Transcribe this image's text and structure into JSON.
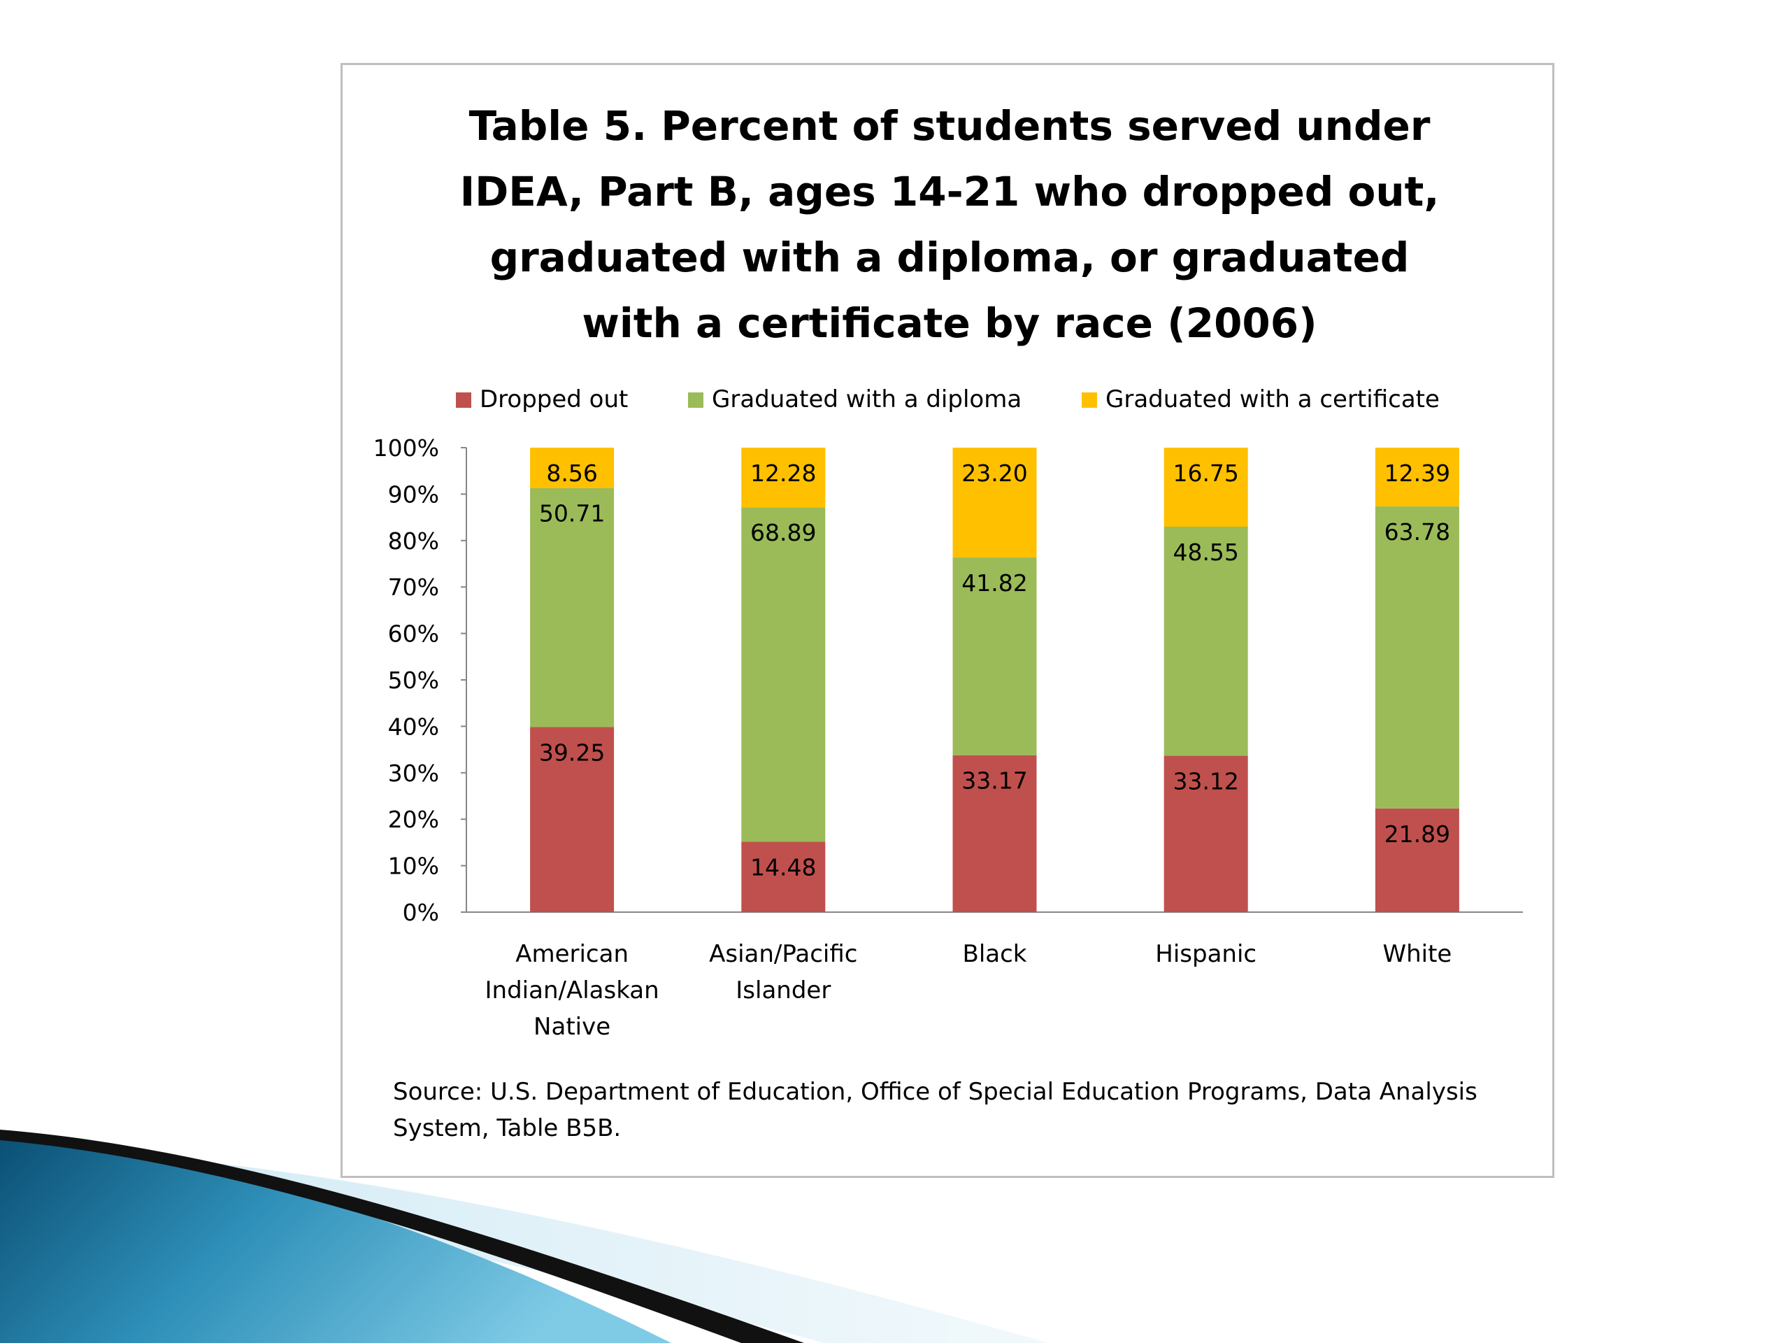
{
  "slide": {
    "colors": {
      "background": "#ffffff",
      "swoosh_light": "#4fb3d6",
      "swoosh_dark": "#0b4f74",
      "swoosh_black": "#111111"
    }
  },
  "chart_data": {
    "type": "bar",
    "stacked": true,
    "title_lines": [
      "Table 5. Percent of students served under",
      "IDEA, Part B, ages 14-21 who dropped out,",
      "graduated with a diploma, or graduated",
      "with a certificate by race (2006)"
    ],
    "categories": [
      [
        "American",
        "Indian/Alaskan",
        "Native"
      ],
      [
        "Asian/Pacific",
        "Islander"
      ],
      [
        "Black"
      ],
      [
        "Hispanic"
      ],
      [
        "White"
      ]
    ],
    "series": [
      {
        "name": "Dropped out",
        "color": "#c0504d",
        "values": [
          39.25,
          14.48,
          33.17,
          33.12,
          21.89
        ],
        "labels": [
          "39.25",
          "14.48",
          "33.17",
          "33.12",
          "21.89"
        ]
      },
      {
        "name": "Graduated with a diploma",
        "color": "#9bbb59",
        "values": [
          50.71,
          68.89,
          41.82,
          48.55,
          63.78
        ],
        "labels": [
          "50.71",
          "68.89",
          "41.82",
          "48.55",
          "63.78"
        ]
      },
      {
        "name": "Graduated with a certificate",
        "color": "#ffc000",
        "values": [
          8.56,
          12.28,
          23.2,
          16.75,
          12.39
        ],
        "labels": [
          "8.56",
          "12.28",
          "23.20",
          "16.75",
          "12.39"
        ]
      }
    ],
    "y_ticks": [
      "0%",
      "10%",
      "20%",
      "30%",
      "40%",
      "50%",
      "60%",
      "70%",
      "80%",
      "90%",
      "100%"
    ],
    "ylim": [
      0,
      100
    ],
    "percent_stacked": true,
    "legend_position": "top",
    "grid": false,
    "source_text": "Source: U.S. Department of Education,  Office of Special Education  Programs, Data  Analysis System, Table  B5B."
  }
}
